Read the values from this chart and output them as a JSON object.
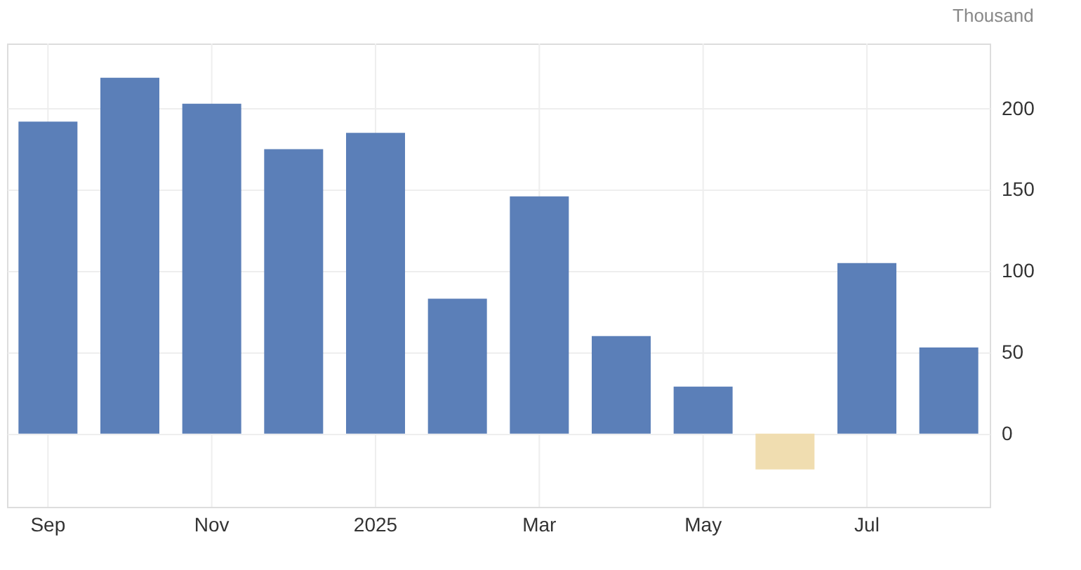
{
  "chart_data": {
    "type": "bar",
    "ylabel": "Thousand",
    "categories": [
      "Sep",
      null,
      "Nov",
      null,
      "2025",
      null,
      "Mar",
      null,
      "May",
      null,
      "Jul",
      null
    ],
    "values": [
      192,
      219,
      203,
      175,
      185,
      83,
      146,
      60,
      29,
      -22,
      105,
      53
    ],
    "colors": [
      "#5b7fb8",
      "#5b7fb8",
      "#5b7fb8",
      "#5b7fb8",
      "#5b7fb8",
      "#5b7fb8",
      "#5b7fb8",
      "#5b7fb8",
      "#5b7fb8",
      "#f0ddb0",
      "#5b7fb8",
      "#5b7fb8"
    ],
    "ylim": [
      -45,
      240
    ],
    "yticks": [
      0,
      50,
      100,
      150,
      200
    ],
    "grid": true
  }
}
